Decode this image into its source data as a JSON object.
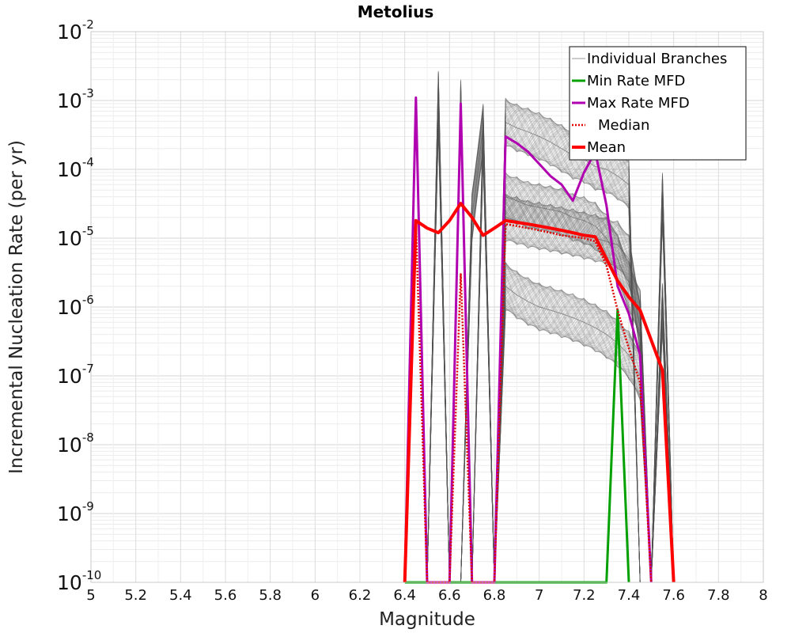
{
  "chart_data": {
    "type": "line",
    "title": "Metolius",
    "xlabel": "Magnitude",
    "ylabel": "Incremental Nucleation Rate (per yr)",
    "xlim": [
      5,
      8
    ],
    "ylim": [
      1e-10,
      0.01
    ],
    "y_scale": "log",
    "grid": true,
    "legend_position": "top-right",
    "x_ticks": [
      "5",
      "5.2",
      "5.4",
      "5.6",
      "5.8",
      "6",
      "6.2",
      "6.4",
      "6.6",
      "6.8",
      "7",
      "7.2",
      "7.4",
      "7.6",
      "7.8",
      "8"
    ],
    "y_ticks": [
      {
        "base": "10",
        "exp": "-10"
      },
      {
        "base": "10",
        "exp": "-9"
      },
      {
        "base": "10",
        "exp": "-8"
      },
      {
        "base": "10",
        "exp": "-7"
      },
      {
        "base": "10",
        "exp": "-6"
      },
      {
        "base": "10",
        "exp": "-5"
      },
      {
        "base": "10",
        "exp": "-4"
      },
      {
        "base": "10",
        "exp": "-3"
      },
      {
        "base": "10",
        "exp": "-2"
      }
    ],
    "series": [
      {
        "name": "Individual Branches",
        "color": "#555555",
        "style": "thin",
        "note_type": "ensemble",
        "branches": [
          {
            "x": [
              6.4,
              6.45,
              6.5,
              6.55,
              6.6,
              6.65,
              6.7,
              6.75,
              6.8,
              6.85,
              6.9,
              6.95,
              7.0,
              7.05,
              7.1,
              7.15,
              7.2,
              7.25,
              7.3,
              7.35,
              7.4,
              7.45,
              7.5,
              7.55,
              7.6
            ],
            "y": [
              1e-10,
              1e-10,
              1e-10,
              0.0012,
              1e-10,
              0.0009,
              1e-10,
              1e-10,
              1e-10,
              0.00048,
              0.0004,
              0.00035,
              0.0003,
              0.00025,
              0.0002,
              0.00016,
              0.00014,
              0.00011,
              0.0001,
              8e-05,
              6e-05,
              1e-10,
              1e-10,
              4e-05,
              1e-10
            ]
          },
          {
            "x": [
              6.4,
              6.45,
              6.5,
              6.55,
              6.6,
              6.65,
              6.7,
              6.75,
              6.8,
              6.85,
              6.9,
              6.95,
              7.0,
              7.05,
              7.1,
              7.15,
              7.2,
              7.25,
              7.3,
              7.35,
              7.4,
              7.45,
              7.5,
              7.55,
              7.6
            ],
            "y": [
              1e-10,
              1e-10,
              1e-10,
              0.0008,
              1e-10,
              1e-10,
              2e-05,
              0.0004,
              1e-10,
              4e-05,
              3.5e-05,
              3e-05,
              2.8e-05,
              2.6e-05,
              2.4e-05,
              2e-05,
              1.8e-05,
              1.5e-05,
              1e-05,
              5e-06,
              2e-06,
              8e-07,
              1e-10,
              1e-10,
              1e-10
            ]
          },
          {
            "x": [
              6.4,
              6.45,
              6.5,
              6.55,
              6.6,
              6.65,
              6.7,
              6.75,
              6.8,
              6.85,
              6.9,
              6.95,
              7.0,
              7.05,
              7.1,
              7.15,
              7.2,
              7.25,
              7.3,
              7.35,
              7.4,
              7.45,
              7.5,
              7.55,
              7.6
            ],
            "y": [
              1e-10,
              1e-10,
              1e-10,
              1e-10,
              1e-10,
              1e-10,
              1e-10,
              1e-10,
              1e-10,
              2e-06,
              1.5e-06,
              1.2e-06,
              1e-06,
              9e-07,
              8e-07,
              7e-07,
              6e-07,
              5e-07,
              4e-07,
              3e-07,
              2e-07,
              1e-07,
              1e-10,
              1e-10,
              1e-10
            ]
          },
          {
            "x": [
              6.4,
              6.45,
              6.5,
              6.55,
              6.6,
              6.65,
              6.7,
              6.75,
              6.8,
              6.85,
              6.9,
              6.95,
              7.0,
              7.05,
              7.1,
              7.15,
              7.2,
              7.25,
              7.3,
              7.35,
              7.4,
              7.45,
              7.5,
              7.55,
              7.6
            ],
            "y": [
              1e-10,
              1e-10,
              1e-10,
              1e-10,
              1e-10,
              1e-10,
              1e-10,
              0.0003,
              1e-10,
              2e-05,
              1.8e-05,
              1.6e-05,
              1.5e-05,
              1.4e-05,
              1.3e-05,
              1.2e-05,
              1.1e-05,
              1e-05,
              9e-06,
              8e-06,
              5e-06,
              5e-07,
              1e-10,
              1e-06,
              1e-10
            ]
          }
        ]
      },
      {
        "name": "Min Rate MFD",
        "color": "#00a000",
        "x": [
          6.4,
          6.45,
          6.5,
          6.55,
          6.6,
          6.65,
          6.7,
          6.75,
          6.8,
          6.85,
          6.9,
          6.95,
          7.0,
          7.05,
          7.1,
          7.15,
          7.2,
          7.25,
          7.3,
          7.35,
          7.4
        ],
        "y": [
          1e-10,
          1e-10,
          1e-10,
          1e-10,
          1e-10,
          1e-10,
          1e-10,
          1e-10,
          1e-10,
          1e-10,
          1e-10,
          1e-10,
          1e-10,
          1e-10,
          1e-10,
          1e-10,
          1e-10,
          1e-10,
          1e-10,
          9e-07,
          1e-10
        ]
      },
      {
        "name": "Max Rate MFD",
        "color": "#b000b0",
        "x": [
          6.4,
          6.45,
          6.5,
          6.55,
          6.6,
          6.65,
          6.7,
          6.75,
          6.8,
          6.85,
          6.9,
          6.95,
          7.0,
          7.05,
          7.1,
          7.15,
          7.2,
          7.25,
          7.3,
          7.35,
          7.4,
          7.45,
          7.5
        ],
        "y": [
          1e-10,
          0.0011,
          1e-10,
          1e-10,
          1e-10,
          0.0009,
          1e-10,
          1e-10,
          1e-10,
          0.0003,
          0.00024,
          0.00018,
          0.00012,
          8e-05,
          6e-05,
          3.5e-05,
          9e-05,
          0.00018,
          3e-05,
          2e-06,
          8e-07,
          2e-07,
          1e-10
        ]
      },
      {
        "name": "Median",
        "color": "#e00000",
        "dashed": true,
        "x": [
          6.4,
          6.45,
          6.5,
          6.55,
          6.6,
          6.65,
          6.7,
          6.75,
          6.8,
          6.85,
          6.9,
          6.95,
          7.0,
          7.05,
          7.1,
          7.15,
          7.2,
          7.25,
          7.3,
          7.35,
          7.4,
          7.45,
          7.5
        ],
        "y": [
          1e-10,
          1.6e-05,
          1e-10,
          1e-10,
          1e-10,
          3e-06,
          1e-10,
          1e-10,
          1e-10,
          1.6e-05,
          1.5e-05,
          1.4e-05,
          1.3e-05,
          1.2e-05,
          1.1e-05,
          1.05e-05,
          1e-05,
          9e-06,
          4e-06,
          9e-07,
          2.5e-07,
          8e-08,
          1e-10
        ]
      },
      {
        "name": "Mean",
        "color": "#ff0000",
        "x": [
          6.4,
          6.45,
          6.5,
          6.55,
          6.6,
          6.65,
          6.7,
          6.75,
          6.8,
          6.85,
          6.9,
          6.95,
          7.0,
          7.05,
          7.1,
          7.15,
          7.2,
          7.25,
          7.3,
          7.35,
          7.4,
          7.45,
          7.55,
          7.6
        ],
        "y": [
          1e-10,
          1.8e-05,
          1.4e-05,
          1.2e-05,
          1.8e-05,
          3.2e-05,
          2e-05,
          1.1e-05,
          1.4e-05,
          1.8e-05,
          1.7e-05,
          1.6e-05,
          1.5e-05,
          1.4e-05,
          1.3e-05,
          1.2e-05,
          1.1e-05,
          1.05e-05,
          5e-06,
          2.4e-06,
          1.4e-06,
          9e-07,
          1.2e-07,
          1e-10
        ]
      }
    ]
  }
}
